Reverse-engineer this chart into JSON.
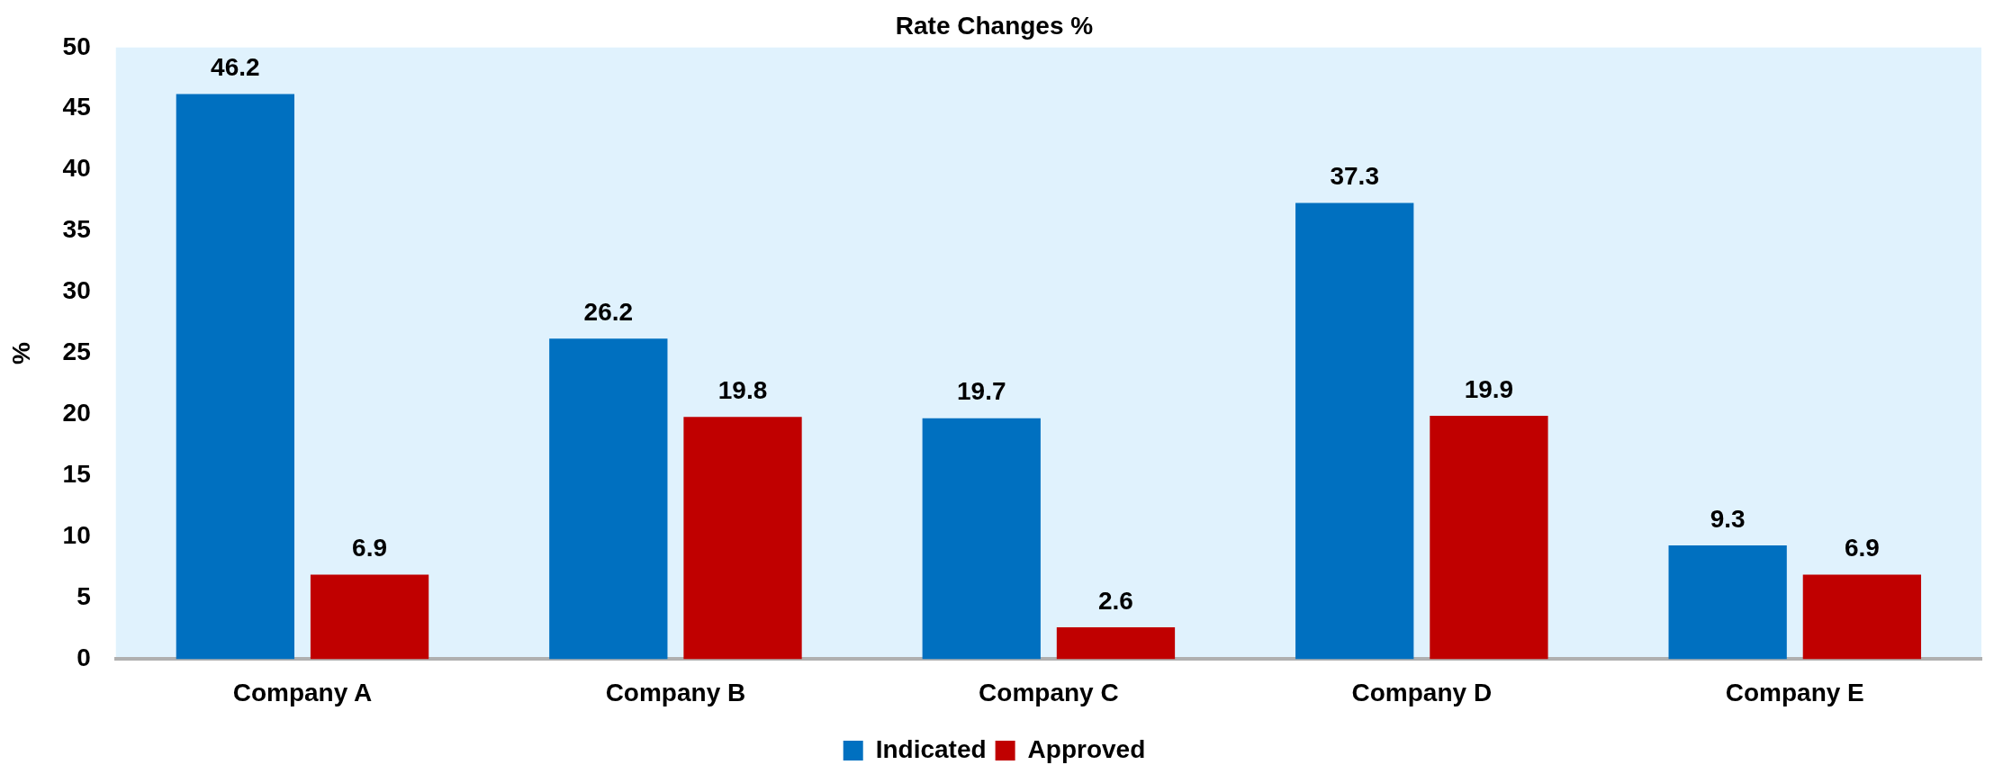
{
  "chart_data": {
    "type": "bar",
    "title": "Rate Changes %",
    "ylabel": "%",
    "categories": [
      "Company A",
      "Company B",
      "Company C",
      "Company D",
      "Company E"
    ],
    "series": [
      {
        "name": "Indicated",
        "color": "#0070c0",
        "values": [
          46.2,
          26.2,
          19.7,
          37.3,
          9.3
        ]
      },
      {
        "name": "Approved",
        "color": "#c00000",
        "values": [
          6.9,
          19.8,
          2.6,
          19.9,
          6.9
        ]
      }
    ],
    "ylim": [
      0,
      50
    ],
    "yticks": [
      0,
      5,
      10,
      15,
      20,
      25,
      30,
      35,
      40,
      45,
      50
    ],
    "data_labels": true,
    "legend": "bottom"
  }
}
